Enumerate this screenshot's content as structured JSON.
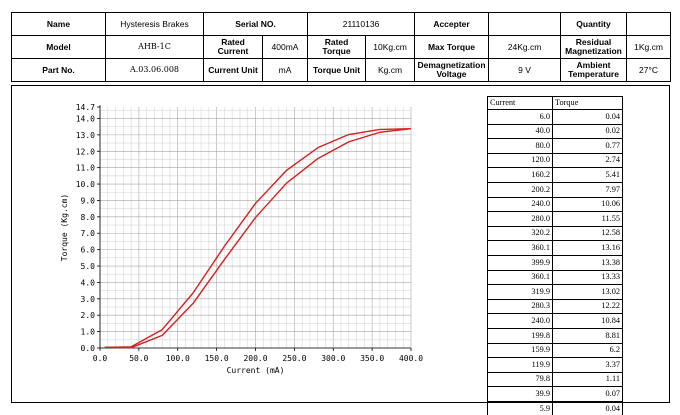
{
  "spec": {
    "name_label": "Name",
    "name_value": "Hysteresis Brakes",
    "serial_label": "Serial NO.",
    "serial_value": "21110136",
    "accepter_label": "Accepter",
    "accepter_value": "",
    "quantity_label": "Quantity",
    "quantity_value": "",
    "model_label": "Model",
    "model_value": "AHB-1C",
    "rated_current_label": "Rated Current",
    "rated_current_value": "400mA",
    "rated_torque_label": "Rated Torque",
    "rated_torque_value": "10Kg.cm",
    "max_torque_label": "Max Torque",
    "max_torque_value": "24Kg.cm",
    "residual_label": "Residual Magnetization",
    "residual_value": "1Kg.cm",
    "part_label": "Part No.",
    "part_value": "A.03.06.008",
    "current_unit_label": "Current Unit",
    "current_unit_value": "mA",
    "torque_unit_label": "Torque Unit",
    "torque_unit_value": "Kg.cm",
    "demag_label": "Demagnetization Voltage",
    "demag_value": "9 V",
    "ambient_label": "Ambient Temperature",
    "ambient_value": "27°C"
  },
  "table": {
    "header_current": "Current",
    "header_torque": "Torque",
    "rows": [
      [
        "6.0",
        "0.04"
      ],
      [
        "40.0",
        "0.02"
      ],
      [
        "80.0",
        "0.77"
      ],
      [
        "120.0",
        "2.74"
      ],
      [
        "160.2",
        "5.41"
      ],
      [
        "200.2",
        "7.97"
      ],
      [
        "240.0",
        "10.06"
      ],
      [
        "280.0",
        "11.55"
      ],
      [
        "320.2",
        "12.58"
      ],
      [
        "360.1",
        "13.16"
      ],
      [
        "399.9",
        "13.38"
      ],
      [
        "360.1",
        "13.33"
      ],
      [
        "319.9",
        "13.02"
      ],
      [
        "280.3",
        "12.22"
      ],
      [
        "240.0",
        "10.84"
      ],
      [
        "199.8",
        "8.81"
      ],
      [
        "159.9",
        "6.2"
      ],
      [
        "119.9",
        "3.37"
      ],
      [
        "79.8",
        "1.11"
      ],
      [
        "39.9",
        "0.07"
      ],
      [
        "5.9",
        "0.04"
      ]
    ]
  },
  "chart_data": {
    "type": "line",
    "title": "",
    "xlabel": "Current (mA)",
    "ylabel": "Torque (Kg.cm)",
    "xlim": [
      0,
      400
    ],
    "ylim": [
      0,
      14.7
    ],
    "x_ticks": [
      "0.0",
      "50.0",
      "100.0",
      "150.0",
      "200.0",
      "250.0",
      "300.0",
      "350.0",
      "400.0"
    ],
    "y_ticks": [
      "0.0",
      "1.0",
      "2.0",
      "3.0",
      "4.0",
      "5.0",
      "6.0",
      "7.0",
      "8.0",
      "9.0",
      "10.0",
      "11.0",
      "12.0",
      "13.0",
      "14.0",
      "14.7"
    ],
    "grid": true,
    "line_color": "#d42020",
    "series": [
      {
        "x": [
          6.0,
          40.0,
          80.0,
          120.0,
          160.2,
          200.2,
          240.0,
          280.0,
          320.2,
          360.1,
          399.9
        ],
        "y": [
          0.04,
          0.02,
          0.77,
          2.74,
          5.41,
          7.97,
          10.06,
          11.55,
          12.58,
          13.16,
          13.38
        ]
      },
      {
        "x": [
          399.9,
          360.1,
          319.9,
          280.3,
          240.0,
          199.8,
          159.9,
          119.9,
          79.8,
          39.9,
          5.9
        ],
        "y": [
          13.38,
          13.33,
          13.02,
          12.22,
          10.84,
          8.81,
          6.2,
          3.37,
          1.11,
          0.07,
          0.04
        ]
      }
    ]
  }
}
